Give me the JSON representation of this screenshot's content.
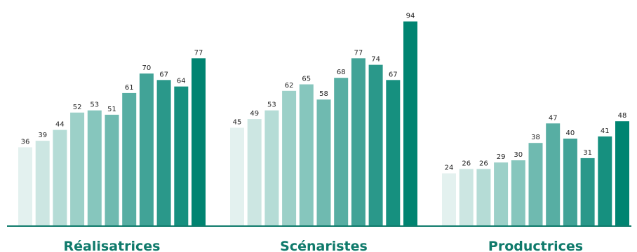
{
  "chart_data": {
    "type": "bar",
    "categories": [
      "Réalisatrices",
      "Scénaristes",
      "Productrices"
    ],
    "series": [
      {
        "values": [
          36,
          45,
          24
        ]
      },
      {
        "values": [
          39,
          49,
          26
        ]
      },
      {
        "values": [
          44,
          53,
          26
        ]
      },
      {
        "values": [
          52,
          62,
          29
        ]
      },
      {
        "values": [
          53,
          65,
          30
        ]
      },
      {
        "values": [
          51,
          58,
          38
        ]
      },
      {
        "values": [
          61,
          68,
          47
        ]
      },
      {
        "values": [
          70,
          77,
          40
        ]
      },
      {
        "values": [
          67,
          74,
          31
        ]
      },
      {
        "values": [
          64,
          67,
          41
        ]
      },
      {
        "values": [
          77,
          94,
          48
        ]
      }
    ],
    "ylim": [
      0,
      100
    ],
    "grid": false,
    "colors": [
      "#e3f1ef",
      "#cce6e2",
      "#b5dcd6",
      "#9cd0c8",
      "#86c6bd",
      "#6fbab0",
      "#57aea3",
      "#41a397",
      "#2a988a",
      "#16907f",
      "#008471"
    ],
    "axis_color": "#0f7a6b",
    "label_color": "#0f7a6b"
  }
}
